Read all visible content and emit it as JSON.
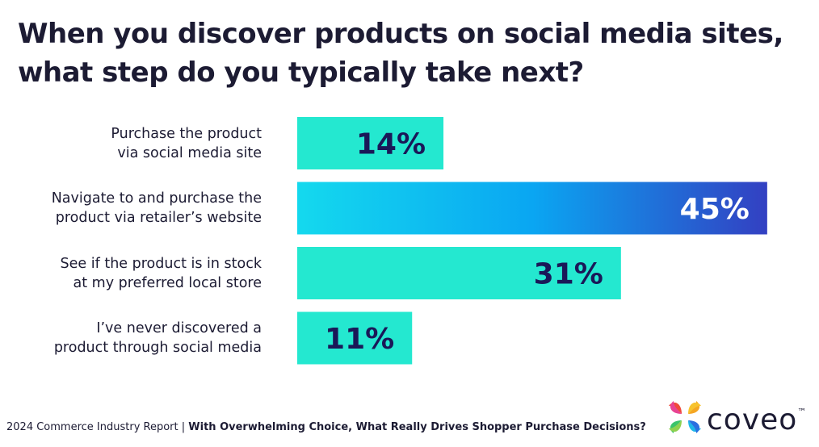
{
  "chart_data": {
    "type": "bar",
    "orientation": "horizontal",
    "title": "When you discover products on social media sites,\nwhat step do you typically take next?",
    "categories": [
      "Purchase the product\nvia social media site",
      "Navigate to and purchase the\nproduct via retailer’s website",
      "See if the product is in stock\nat my preferred local store",
      "I’ve never discovered a\nproduct through social media"
    ],
    "values": [
      14,
      45,
      31,
      11
    ],
    "value_labels": [
      "14%",
      "45%",
      "31%",
      "11%"
    ],
    "colors": [
      "#24e8d0",
      [
        "#14d9ee",
        "#0aa6f2",
        "#3340c2"
      ],
      "#24e8d0",
      "#24e8d0"
    ],
    "label_colors": [
      "#1a1858",
      "#ffffff",
      "#1a1858",
      "#1a1858"
    ]
  },
  "footer": {
    "report": "2024 Commerce Industry Report",
    "separator": "|",
    "subtitle": "With Overwhelming Choice, What Really Drives Shopper Purchase Decisions?",
    "logo": "coveo",
    "trademark": "™"
  }
}
